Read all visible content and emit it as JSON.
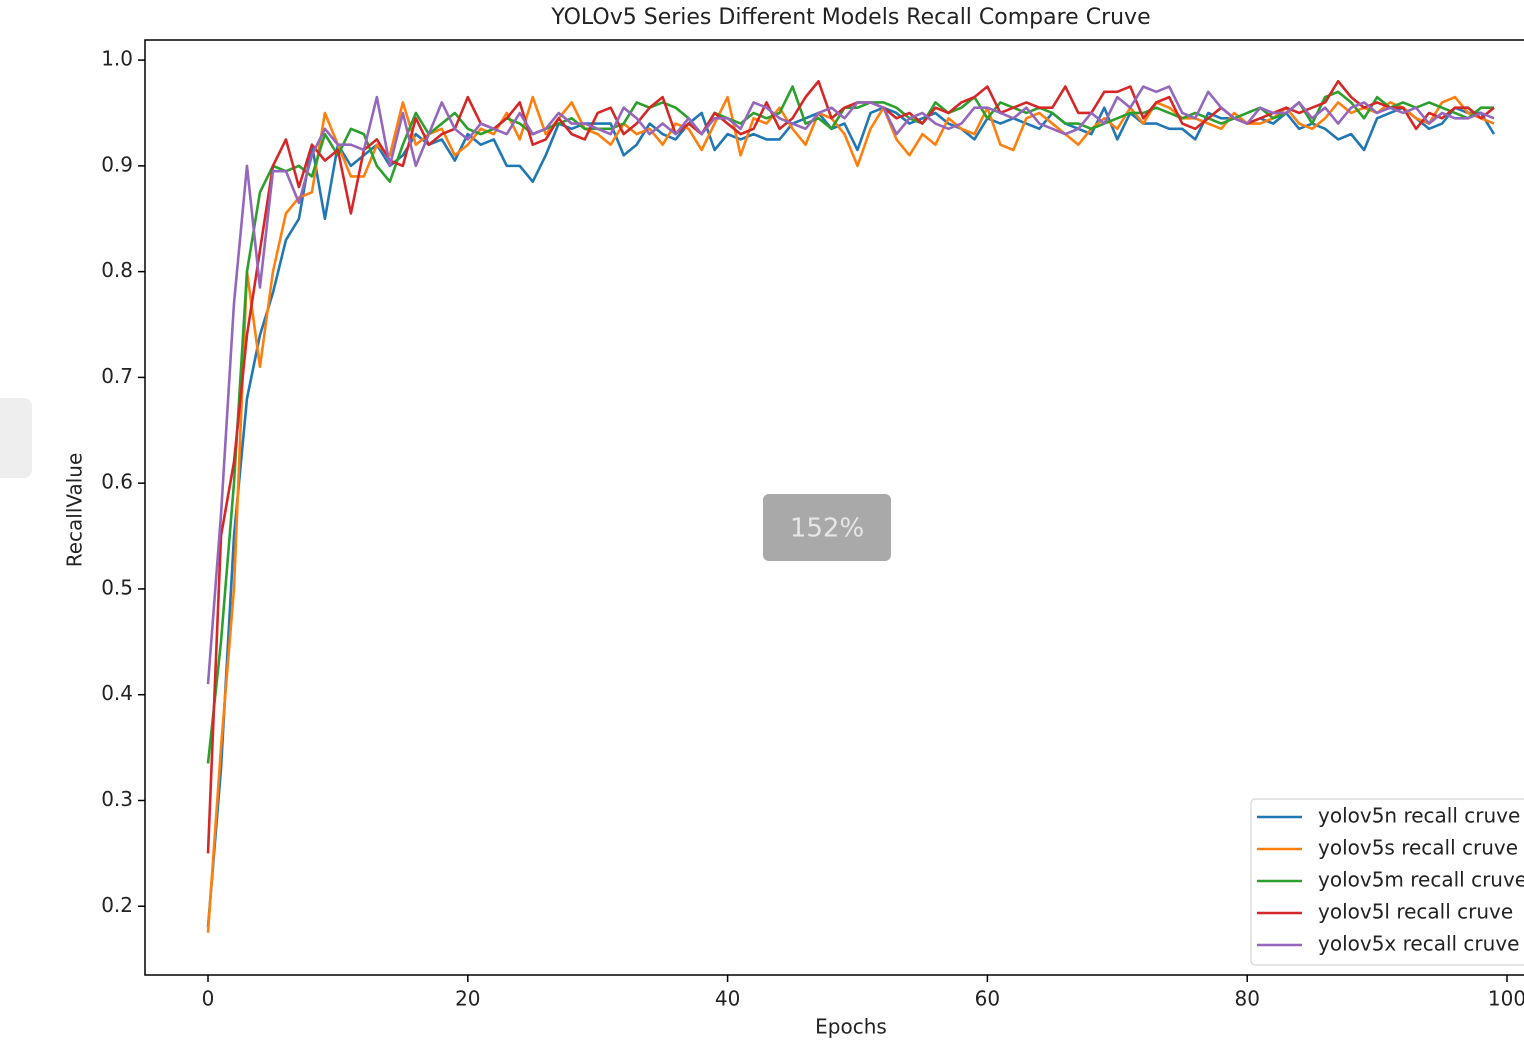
{
  "chart_data": {
    "type": "line",
    "title": "YOLOv5 Series Different Models Recall Compare Cruve",
    "x_label": "Epochs",
    "y_label": "RecallValue",
    "x": [
      0,
      1,
      2,
      3,
      4,
      5,
      6,
      7,
      8,
      9,
      10,
      11,
      12,
      13,
      14,
      15,
      16,
      17,
      18,
      19,
      20,
      21,
      22,
      23,
      24,
      25,
      26,
      27,
      28,
      29,
      30,
      31,
      32,
      33,
      34,
      35,
      36,
      37,
      38,
      39,
      40,
      41,
      42,
      43,
      44,
      45,
      46,
      47,
      48,
      49,
      50,
      51,
      52,
      53,
      54,
      55,
      56,
      57,
      58,
      59,
      60,
      61,
      62,
      63,
      64,
      65,
      66,
      67,
      68,
      69,
      70,
      71,
      72,
      73,
      74,
      75,
      76,
      77,
      78,
      79,
      80,
      81,
      82,
      83,
      84,
      85,
      86,
      87,
      88,
      89,
      90,
      91,
      92,
      93,
      94,
      95,
      96,
      97,
      98,
      99
    ],
    "series": [
      {
        "name": "yolov5n recall cruve",
        "color": "#1f77b4",
        "values": [
          0.18,
          0.33,
          0.55,
          0.68,
          0.74,
          0.78,
          0.83,
          0.85,
          0.92,
          0.85,
          0.92,
          0.9,
          0.91,
          0.92,
          0.9,
          0.91,
          0.93,
          0.92,
          0.925,
          0.905,
          0.93,
          0.92,
          0.925,
          0.9,
          0.9,
          0.885,
          0.91,
          0.94,
          0.935,
          0.94,
          0.94,
          0.94,
          0.91,
          0.92,
          0.94,
          0.93,
          0.925,
          0.94,
          0.95,
          0.915,
          0.93,
          0.925,
          0.93,
          0.925,
          0.925,
          0.94,
          0.945,
          0.95,
          0.935,
          0.94,
          0.915,
          0.95,
          0.955,
          0.95,
          0.94,
          0.945,
          0.95,
          0.94,
          0.935,
          0.925,
          0.945,
          0.94,
          0.945,
          0.94,
          0.935,
          0.95,
          0.94,
          0.935,
          0.93,
          0.955,
          0.925,
          0.95,
          0.94,
          0.94,
          0.935,
          0.935,
          0.925,
          0.95,
          0.945,
          0.945,
          0.94,
          0.945,
          0.94,
          0.95,
          0.935,
          0.94,
          0.935,
          0.925,
          0.93,
          0.915,
          0.945,
          0.95,
          0.955,
          0.945,
          0.935,
          0.94,
          0.955,
          0.95,
          0.95,
          0.93
        ]
      },
      {
        "name": "yolov5s recall cruve",
        "color": "#ff7f0e",
        "values": [
          0.175,
          0.35,
          0.5,
          0.8,
          0.71,
          0.8,
          0.855,
          0.87,
          0.875,
          0.95,
          0.92,
          0.89,
          0.89,
          0.92,
          0.91,
          0.96,
          0.92,
          0.93,
          0.935,
          0.91,
          0.92,
          0.935,
          0.93,
          0.95,
          0.925,
          0.965,
          0.93,
          0.945,
          0.96,
          0.935,
          0.93,
          0.92,
          0.94,
          0.93,
          0.935,
          0.92,
          0.94,
          0.935,
          0.915,
          0.94,
          0.965,
          0.91,
          0.945,
          0.94,
          0.955,
          0.935,
          0.92,
          0.95,
          0.945,
          0.93,
          0.9,
          0.935,
          0.955,
          0.925,
          0.91,
          0.93,
          0.92,
          0.945,
          0.935,
          0.93,
          0.955,
          0.92,
          0.915,
          0.945,
          0.95,
          0.94,
          0.93,
          0.92,
          0.935,
          0.945,
          0.935,
          0.955,
          0.94,
          0.96,
          0.955,
          0.945,
          0.945,
          0.94,
          0.935,
          0.95,
          0.94,
          0.94,
          0.945,
          0.955,
          0.94,
          0.935,
          0.945,
          0.96,
          0.95,
          0.955,
          0.95,
          0.96,
          0.955,
          0.945,
          0.94,
          0.96,
          0.965,
          0.95,
          0.945,
          0.94
        ]
      },
      {
        "name": "yolov5m recall cruve",
        "color": "#2ca02c",
        "values": [
          0.335,
          0.45,
          0.6,
          0.8,
          0.875,
          0.9,
          0.895,
          0.9,
          0.89,
          0.93,
          0.91,
          0.935,
          0.93,
          0.9,
          0.885,
          0.92,
          0.95,
          0.93,
          0.94,
          0.95,
          0.935,
          0.93,
          0.935,
          0.945,
          0.94,
          0.93,
          0.935,
          0.94,
          0.945,
          0.935,
          0.935,
          0.935,
          0.94,
          0.96,
          0.955,
          0.96,
          0.955,
          0.945,
          0.93,
          0.95,
          0.945,
          0.94,
          0.95,
          0.945,
          0.95,
          0.975,
          0.94,
          0.945,
          0.935,
          0.955,
          0.955,
          0.96,
          0.96,
          0.955,
          0.945,
          0.94,
          0.96,
          0.95,
          0.955,
          0.965,
          0.945,
          0.96,
          0.955,
          0.95,
          0.955,
          0.95,
          0.94,
          0.94,
          0.935,
          0.94,
          0.945,
          0.95,
          0.95,
          0.955,
          0.95,
          0.945,
          0.95,
          0.945,
          0.94,
          0.945,
          0.95,
          0.955,
          0.945,
          0.95,
          0.96,
          0.94,
          0.965,
          0.97,
          0.96,
          0.945,
          0.965,
          0.955,
          0.96,
          0.955,
          0.96,
          0.955,
          0.95,
          0.945,
          0.955,
          0.955
        ]
      },
      {
        "name": "yolov5l recall cruve",
        "color": "#d62728",
        "values": [
          0.25,
          0.55,
          0.62,
          0.74,
          0.82,
          0.9,
          0.925,
          0.88,
          0.92,
          0.905,
          0.915,
          0.855,
          0.915,
          0.925,
          0.905,
          0.9,
          0.945,
          0.92,
          0.93,
          0.935,
          0.965,
          0.94,
          0.935,
          0.945,
          0.96,
          0.92,
          0.925,
          0.945,
          0.93,
          0.925,
          0.95,
          0.955,
          0.93,
          0.94,
          0.955,
          0.965,
          0.93,
          0.94,
          0.93,
          0.95,
          0.94,
          0.93,
          0.935,
          0.96,
          0.935,
          0.945,
          0.965,
          0.98,
          0.945,
          0.955,
          0.96,
          0.96,
          0.955,
          0.945,
          0.95,
          0.94,
          0.955,
          0.95,
          0.96,
          0.965,
          0.975,
          0.95,
          0.955,
          0.96,
          0.955,
          0.955,
          0.975,
          0.95,
          0.95,
          0.97,
          0.97,
          0.975,
          0.945,
          0.96,
          0.965,
          0.94,
          0.935,
          0.945,
          0.955,
          0.945,
          0.94,
          0.945,
          0.95,
          0.955,
          0.95,
          0.955,
          0.96,
          0.98,
          0.965,
          0.955,
          0.96,
          0.955,
          0.955,
          0.935,
          0.95,
          0.945,
          0.955,
          0.955,
          0.945,
          0.955
        ]
      },
      {
        "name": "yolov5x recall cruve",
        "color": "#9467bd",
        "values": [
          0.41,
          0.57,
          0.77,
          0.9,
          0.785,
          0.895,
          0.895,
          0.865,
          0.91,
          0.935,
          0.92,
          0.92,
          0.915,
          0.965,
          0.9,
          0.95,
          0.9,
          0.93,
          0.96,
          0.935,
          0.925,
          0.94,
          0.935,
          0.93,
          0.95,
          0.93,
          0.935,
          0.95,
          0.94,
          0.94,
          0.935,
          0.93,
          0.955,
          0.945,
          0.93,
          0.94,
          0.93,
          0.945,
          0.93,
          0.945,
          0.945,
          0.935,
          0.96,
          0.955,
          0.945,
          0.94,
          0.935,
          0.95,
          0.955,
          0.945,
          0.96,
          0.96,
          0.955,
          0.93,
          0.945,
          0.95,
          0.94,
          0.935,
          0.94,
          0.955,
          0.955,
          0.95,
          0.945,
          0.955,
          0.94,
          0.935,
          0.93,
          0.935,
          0.95,
          0.94,
          0.965,
          0.955,
          0.975,
          0.97,
          0.975,
          0.95,
          0.945,
          0.97,
          0.955,
          0.945,
          0.94,
          0.955,
          0.95,
          0.95,
          0.96,
          0.945,
          0.955,
          0.94,
          0.955,
          0.96,
          0.95,
          0.955,
          0.95,
          0.955,
          0.94,
          0.95,
          0.945,
          0.945,
          0.95,
          0.945
        ]
      }
    ],
    "xlim": [
      -4.95,
      103.95
    ],
    "ylim": [
      0.135,
      1.019
    ],
    "xticks": [
      0,
      20,
      40,
      60,
      80,
      100
    ],
    "yticks": [
      0.2,
      0.3,
      0.4,
      0.5,
      0.6,
      0.7,
      0.8,
      0.9,
      {
        "value": 1,
        "label": "1.0"
      }
    ],
    "legend": "lower right",
    "grid": false
  },
  "overlay": {
    "zoom": "152%"
  }
}
